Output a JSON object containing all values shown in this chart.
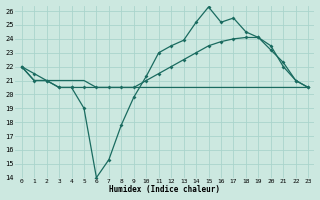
{
  "xlabel": "Humidex (Indice chaleur)",
  "background_color": "#cce8e0",
  "grid_color": "#aad4cc",
  "line_color": "#1a6b60",
  "xlim": [
    -0.5,
    23.5
  ],
  "ylim": [
    14,
    26.4
  ],
  "yticks": [
    14,
    15,
    16,
    17,
    18,
    19,
    20,
    21,
    22,
    23,
    24,
    25,
    26
  ],
  "xticks": [
    0,
    1,
    2,
    3,
    4,
    5,
    6,
    7,
    8,
    9,
    10,
    11,
    12,
    13,
    14,
    15,
    16,
    17,
    18,
    19,
    20,
    21,
    22,
    23
  ],
  "line1_x": [
    0,
    1,
    2,
    3,
    4,
    5,
    6,
    7,
    8,
    9,
    10,
    11,
    12,
    13,
    14,
    15,
    16,
    17,
    18,
    19,
    20,
    21,
    22,
    23
  ],
  "line1_y": [
    22,
    21.5,
    21.0,
    20.5,
    20.5,
    19.0,
    14.0,
    15.3,
    17.8,
    19.8,
    21.3,
    23.0,
    23.5,
    23.9,
    25.2,
    26.3,
    25.2,
    25.5,
    24.5,
    24.1,
    23.2,
    22.3,
    21.0,
    20.5
  ],
  "line2_x": [
    0,
    1,
    2,
    3,
    4,
    5,
    6,
    7,
    8,
    9,
    10,
    11,
    12,
    13,
    14,
    15,
    16,
    17,
    18,
    19,
    20,
    21,
    22,
    23
  ],
  "line2_y": [
    22,
    21,
    21,
    20.5,
    20.5,
    20.5,
    20.5,
    20.5,
    20.5,
    20.5,
    21.0,
    21.5,
    22.0,
    22.5,
    23.0,
    23.5,
    23.8,
    24.0,
    24.1,
    24.1,
    23.5,
    22.0,
    21.0,
    20.5
  ],
  "line3_x": [
    0,
    1,
    2,
    3,
    4,
    5,
    6,
    7,
    8,
    9,
    10,
    11,
    12,
    13,
    14,
    15,
    16,
    17,
    18,
    19,
    20,
    21,
    22,
    23
  ],
  "line3_y": [
    22,
    21,
    21,
    21,
    21,
    21,
    20.5,
    20.5,
    20.5,
    20.5,
    20.5,
    20.5,
    20.5,
    20.5,
    20.5,
    20.5,
    20.5,
    20.5,
    20.5,
    20.5,
    20.5,
    20.5,
    20.5,
    20.5
  ]
}
